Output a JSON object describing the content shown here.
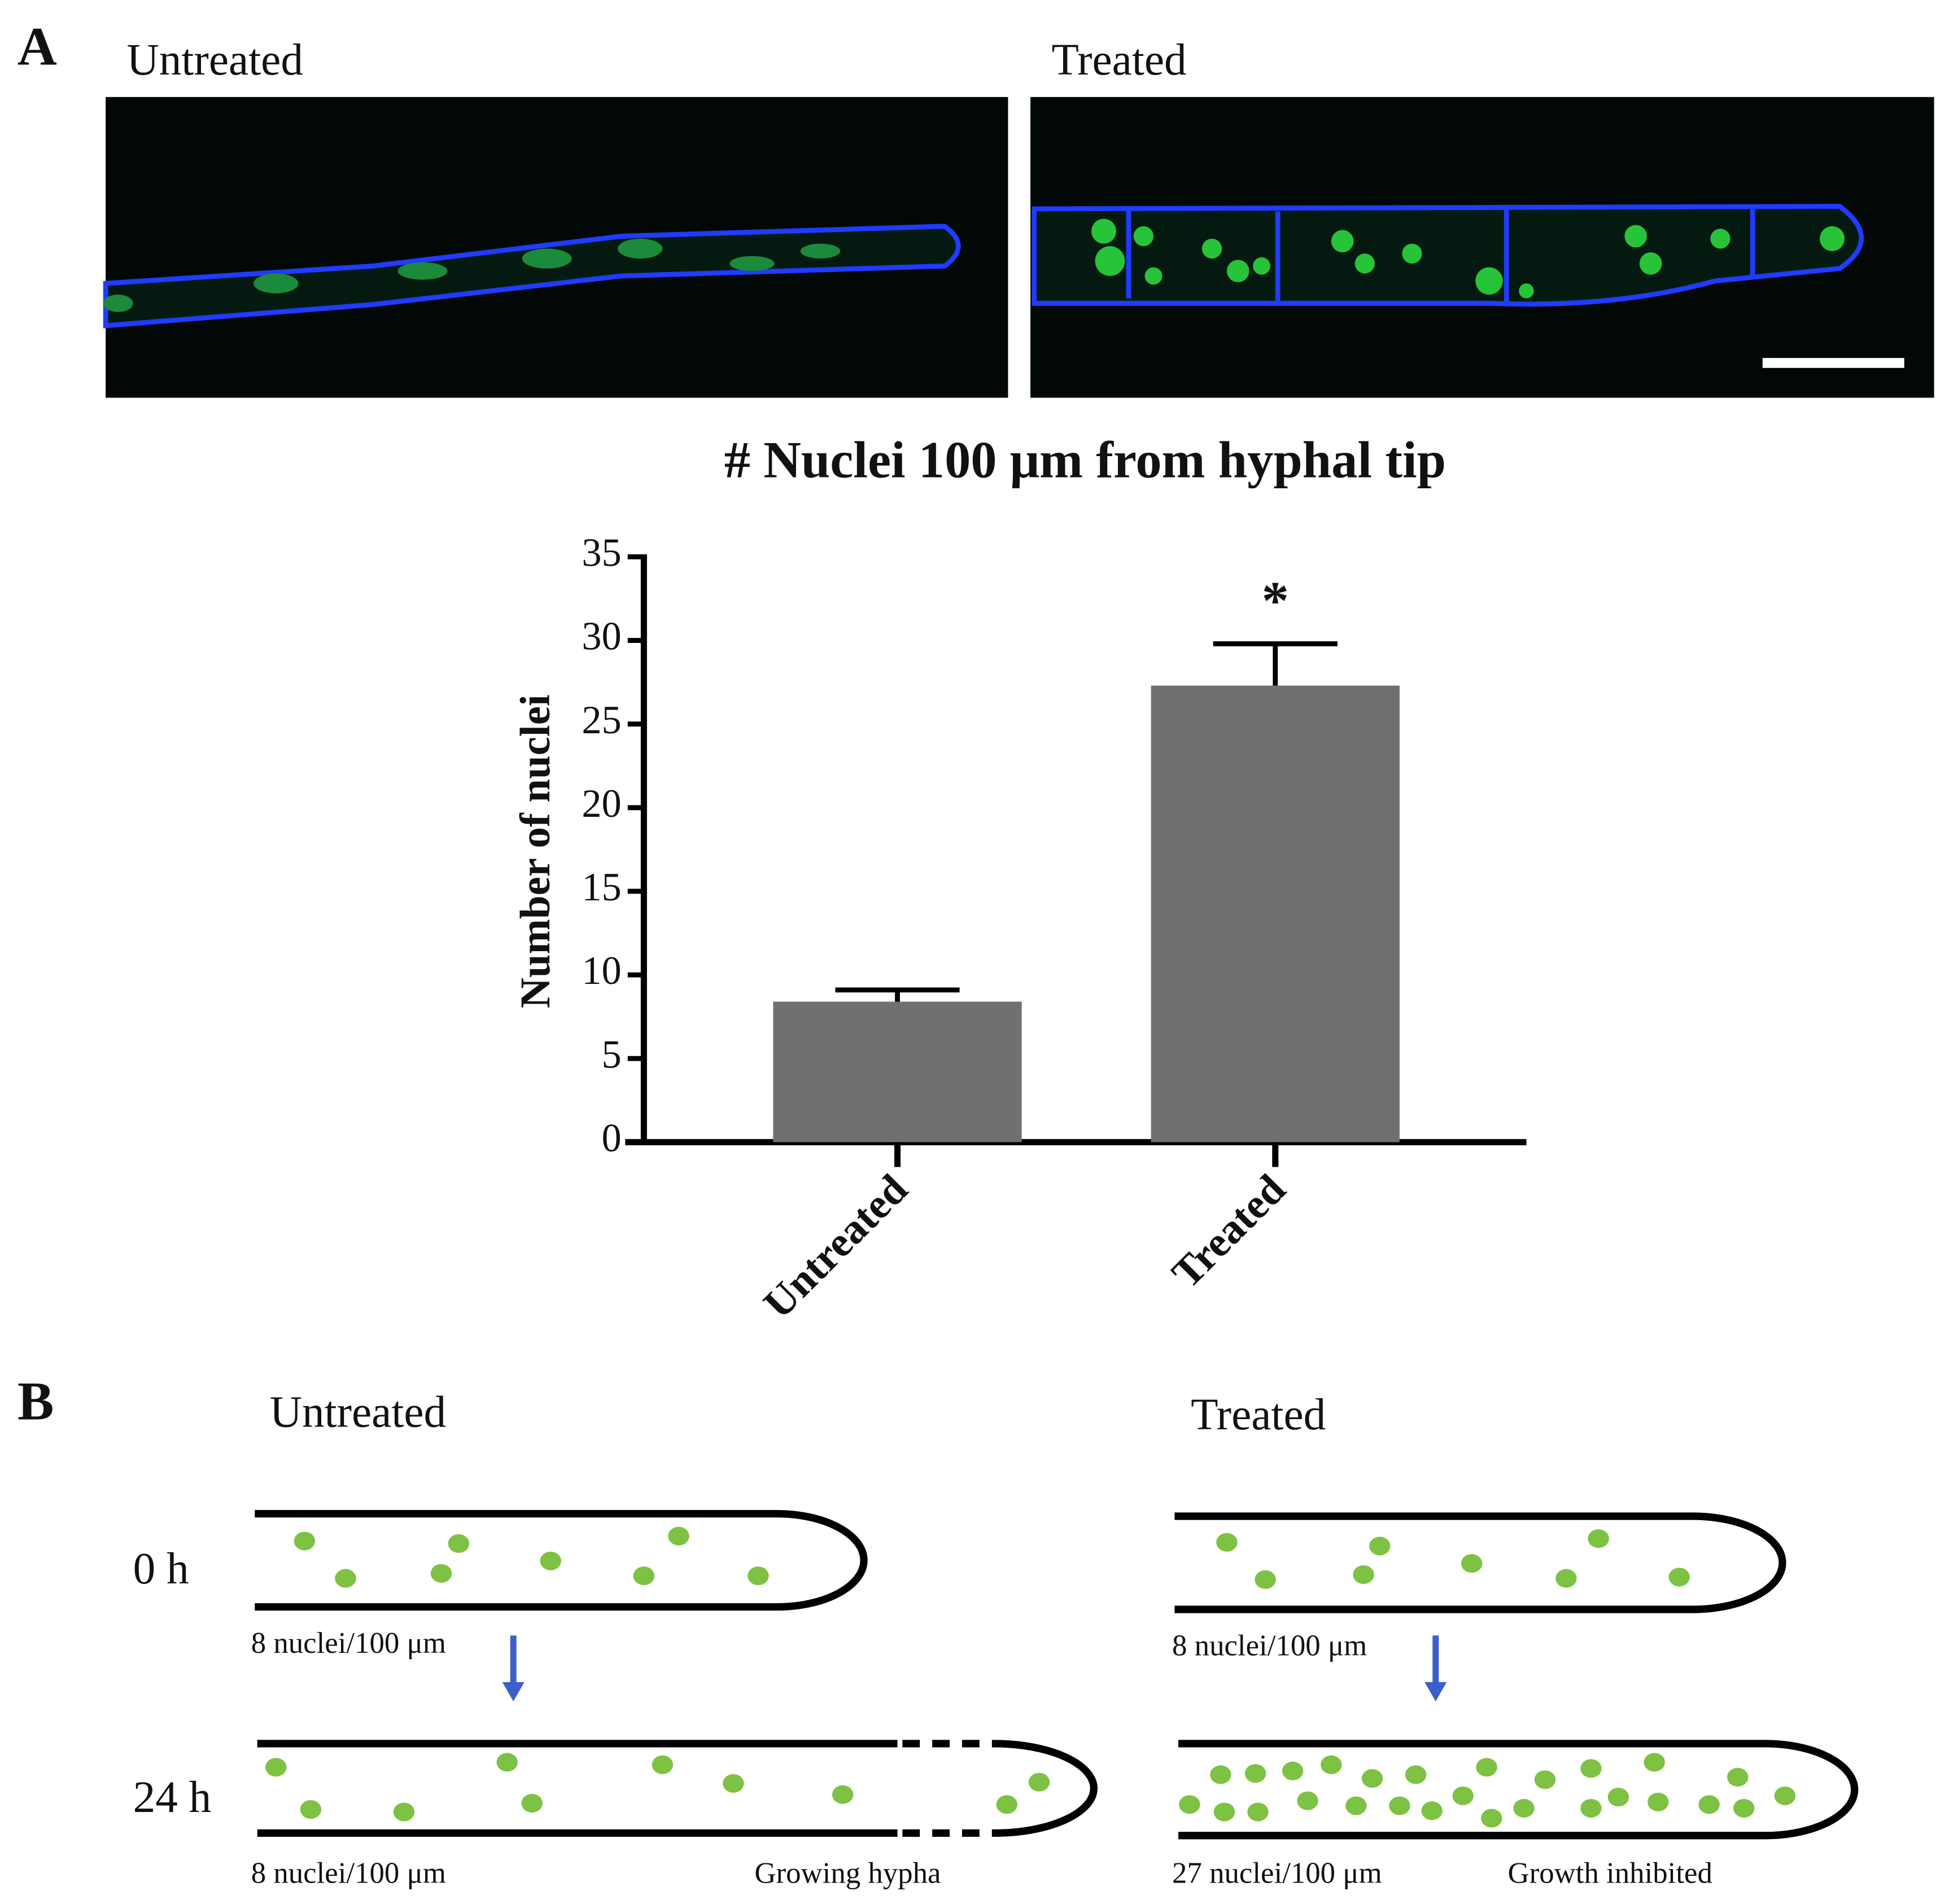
{
  "panel_a": {
    "label": "A",
    "untreated_title": "Untreated",
    "treated_title": "Treated"
  },
  "chart_data": {
    "type": "bar",
    "title": "# Nuclei 100 μm from hyphal tip",
    "y_label": "Number of nuclei",
    "categories": [
      "Untreated",
      "Treated"
    ],
    "values": [
      8.4,
      27.3
    ],
    "errors": [
      0.7,
      2.5
    ],
    "color": "#707070",
    "ylim": [
      0,
      35
    ],
    "yticks": [
      0,
      5,
      10,
      15,
      20,
      25,
      30,
      35
    ],
    "annotations": [
      {
        "category": "Treated",
        "text": "*"
      }
    ]
  },
  "panel_b": {
    "label": "B",
    "times": [
      "0 h",
      "24 h"
    ],
    "untreated": {
      "title": "Untreated",
      "density_0h": "8 nuclei/100 μm",
      "density_24h": "8 nuclei/100 μm",
      "note": "Growing hypha"
    },
    "treated": {
      "title": "Treated",
      "density_0h": "8 nuclei/100 μm",
      "density_24h": "27 nuclei/100 μm",
      "note": "Growth inhibited"
    }
  }
}
